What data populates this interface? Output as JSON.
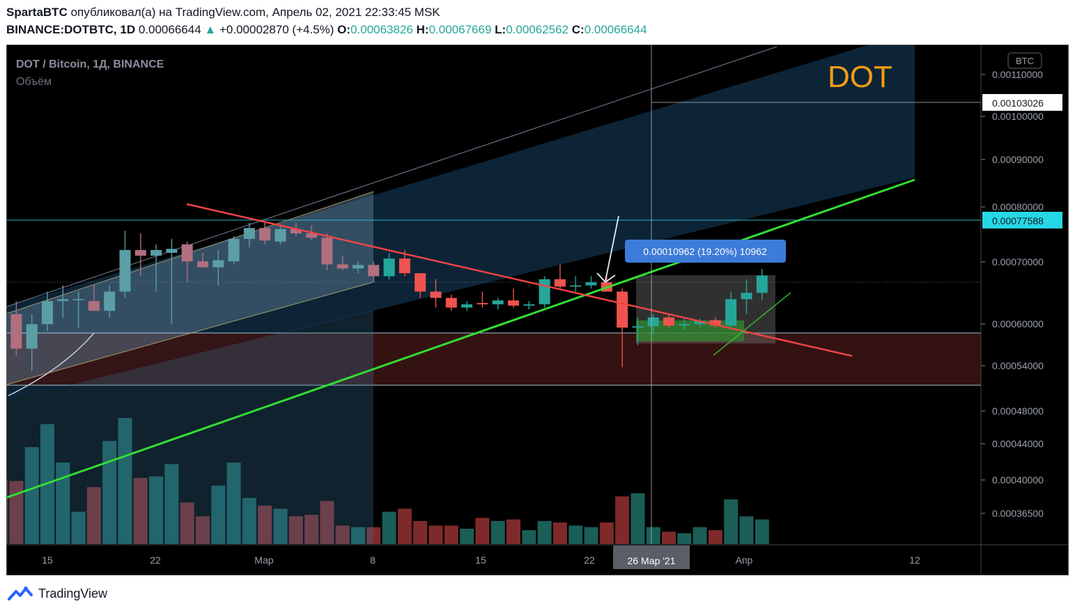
{
  "header": {
    "author": "SpartaBTC",
    "published_text": "опубликовал(а) на TradingView.com, Апрель 02, 2021 22:33:45 MSK",
    "symbol": "BINANCE:DOTBTC, 1D",
    "last_price": "0.00066644",
    "change": "+0.00002870 (+4.5%)",
    "open_label": "O:",
    "open": "0.00063826",
    "high_label": "H:",
    "high": "0.00067669",
    "low_label": "L:",
    "low": "0.00062562",
    "close_label": "C:",
    "close": "0.00066644"
  },
  "pane": {
    "title": "DOT / Bitcoin, 1Д, BINANCE",
    "volume_label": "Объём",
    "big_label": "DOT",
    "currency_badge": "BTC",
    "measure_label": "0.00010962 (19.20%) 10962",
    "crosshair_date": "26 Мар '21",
    "crosshair_price": "0.00103026",
    "last_price_label": "0.00077588"
  },
  "footer": {
    "brand": "TradingView"
  },
  "colors": {
    "up": "#26a69a",
    "down": "#ef5350",
    "up_soft": "#5b9ea6",
    "down_soft": "#b07080",
    "vol_up": "#1b5e58",
    "vol_down": "#7f2a2a",
    "green_line": "#33dd33",
    "red_line": "#ef4444",
    "measure": "#3d7bd9"
  },
  "chart_data": {
    "type": "candlestick",
    "y_scale": "log",
    "ylim": [
      0.00033,
      0.0012
    ],
    "y_ticks": [
      "0.00110000",
      "0.00100000",
      "0.00090000",
      "0.00080000",
      "0.00070000",
      "0.00060000",
      "0.00054000",
      "0.00048000",
      "0.00044000",
      "0.00040000",
      "0.00036500"
    ],
    "x_ticks": [
      "15",
      "22",
      "Мар",
      "8",
      "15",
      "22",
      "Апр",
      "12"
    ],
    "candles": [
      {
        "date": "2021-02-12",
        "o": 0.000615,
        "h": 0.00064,
        "l": 0.00058,
        "c": 0.0006,
        "v": 0.42
      },
      {
        "date": "2021-02-13",
        "o": 0.000605,
        "h": 0.000625,
        "l": 0.000545,
        "c": 0.000555,
        "v": 0.41
      },
      {
        "date": "2021-02-14",
        "o": 0.000555,
        "h": 0.000605,
        "l": 0.000525,
        "c": 0.00059,
        "v": 0.63
      },
      {
        "date": "2021-02-15",
        "o": 0.00059,
        "h": 0.00064,
        "l": 0.00058,
        "c": 0.000625,
        "v": 0.78
      },
      {
        "date": "2021-02-16",
        "o": 0.000625,
        "h": 0.00065,
        "l": 0.0006,
        "c": 0.000628,
        "v": 0.53
      },
      {
        "date": "2021-02-17",
        "o": 0.000628,
        "h": 0.00064,
        "l": 0.000585,
        "c": 0.000628,
        "v": 0.21
      },
      {
        "date": "2021-02-18",
        "o": 0.000625,
        "h": 0.00065,
        "l": 0.00061,
        "c": 0.00061,
        "v": 0.37
      },
      {
        "date": "2021-02-19",
        "o": 0.00061,
        "h": 0.00065,
        "l": 0.0006,
        "c": 0.00064,
        "v": 0.67
      },
      {
        "date": "2021-02-20",
        "o": 0.00064,
        "h": 0.000745,
        "l": 0.00063,
        "c": 0.00071,
        "v": 0.82
      },
      {
        "date": "2021-02-21",
        "o": 0.00071,
        "h": 0.00074,
        "l": 0.000665,
        "c": 0.0007,
        "v": 0.43
      },
      {
        "date": "2021-02-22",
        "o": 0.0007,
        "h": 0.00072,
        "l": 0.00064,
        "c": 0.00071,
        "v": 0.44
      },
      {
        "date": "2021-02-23",
        "o": 0.000705,
        "h": 0.00073,
        "l": 0.00059,
        "c": 0.000712,
        "v": 0.52
      },
      {
        "date": "2021-02-24",
        "o": 0.00072,
        "h": 0.000725,
        "l": 0.000655,
        "c": 0.00069,
        "v": 0.27
      },
      {
        "date": "2021-02-25",
        "o": 0.00069,
        "h": 0.000705,
        "l": 0.00068,
        "c": 0.00068,
        "v": 0.18
      },
      {
        "date": "2021-02-26",
        "o": 0.00068,
        "h": 0.00071,
        "l": 0.00065,
        "c": 0.000692,
        "v": 0.38
      },
      {
        "date": "2021-02-27",
        "o": 0.00069,
        "h": 0.000735,
        "l": 0.000685,
        "c": 0.00073,
        "v": 0.53
      },
      {
        "date": "2021-02-28",
        "o": 0.00073,
        "h": 0.00076,
        "l": 0.000715,
        "c": 0.00075,
        "v": 0.3
      },
      {
        "date": "2021-03-01",
        "o": 0.00075,
        "h": 0.00076,
        "l": 0.00072,
        "c": 0.000727,
        "v": 0.25
      },
      {
        "date": "2021-03-02",
        "o": 0.000725,
        "h": 0.000755,
        "l": 0.00072,
        "c": 0.000748,
        "v": 0.23
      },
      {
        "date": "2021-03-03",
        "o": 0.000748,
        "h": 0.00076,
        "l": 0.000735,
        "c": 0.00074,
        "v": 0.18
      },
      {
        "date": "2021-03-04",
        "o": 0.00074,
        "h": 0.000755,
        "l": 0.000728,
        "c": 0.000732,
        "v": 0.19
      },
      {
        "date": "2021-03-05",
        "o": 0.000732,
        "h": 0.00074,
        "l": 0.000675,
        "c": 0.000685,
        "v": 0.28
      },
      {
        "date": "2021-03-06",
        "o": 0.000685,
        "h": 0.0007,
        "l": 0.000675,
        "c": 0.000678,
        "v": 0.12
      },
      {
        "date": "2021-03-07",
        "o": 0.000678,
        "h": 0.00069,
        "l": 0.00067,
        "c": 0.000684,
        "v": 0.11
      },
      {
        "date": "2021-03-08",
        "o": 0.000684,
        "h": 0.00069,
        "l": 0.000655,
        "c": 0.000665,
        "v": 0.11
      },
      {
        "date": "2021-03-09",
        "o": 0.000665,
        "h": 0.000705,
        "l": 0.00066,
        "c": 0.000695,
        "v": 0.21
      },
      {
        "date": "2021-03-10",
        "o": 0.000695,
        "h": 0.00071,
        "l": 0.000665,
        "c": 0.00067,
        "v": 0.23
      },
      {
        "date": "2021-03-11",
        "o": 0.00067,
        "h": 0.00067,
        "l": 0.00063,
        "c": 0.00064,
        "v": 0.15
      },
      {
        "date": "2021-03-12",
        "o": 0.00064,
        "h": 0.00066,
        "l": 0.000615,
        "c": 0.00063,
        "v": 0.12
      },
      {
        "date": "2021-03-13",
        "o": 0.00063,
        "h": 0.000635,
        "l": 0.00061,
        "c": 0.000615,
        "v": 0.12
      },
      {
        "date": "2021-03-14",
        "o": 0.000615,
        "h": 0.000625,
        "l": 0.00061,
        "c": 0.00062,
        "v": 0.1
      },
      {
        "date": "2021-03-15",
        "o": 0.000622,
        "h": 0.00064,
        "l": 0.000615,
        "c": 0.00062,
        "v": 0.17
      },
      {
        "date": "2021-03-16",
        "o": 0.00062,
        "h": 0.00063,
        "l": 0.000612,
        "c": 0.000626,
        "v": 0.15
      },
      {
        "date": "2021-03-17",
        "o": 0.000626,
        "h": 0.000645,
        "l": 0.000615,
        "c": 0.000618,
        "v": 0.16
      },
      {
        "date": "2021-03-18",
        "o": 0.000618,
        "h": 0.000625,
        "l": 0.000612,
        "c": 0.00062,
        "v": 0.09
      },
      {
        "date": "2021-03-19",
        "o": 0.00062,
        "h": 0.000665,
        "l": 0.000615,
        "c": 0.00066,
        "v": 0.15
      },
      {
        "date": "2021-03-20",
        "o": 0.00066,
        "h": 0.000685,
        "l": 0.000645,
        "c": 0.000648,
        "v": 0.14
      },
      {
        "date": "2021-03-21",
        "o": 0.000648,
        "h": 0.000665,
        "l": 0.00064,
        "c": 0.00065,
        "v": 0.12
      },
      {
        "date": "2021-03-22",
        "o": 0.00065,
        "h": 0.000665,
        "l": 0.000645,
        "c": 0.000655,
        "v": 0.11
      },
      {
        "date": "2021-03-23",
        "o": 0.000655,
        "h": 0.000668,
        "l": 0.00064,
        "c": 0.00064,
        "v": 0.14
      },
      {
        "date": "2021-03-24",
        "o": 0.00064,
        "h": 0.000645,
        "l": 0.00053,
        "c": 0.000585,
        "v": 0.31
      },
      {
        "date": "2021-03-25",
        "o": 0.000585,
        "h": 0.0006,
        "l": 0.00056,
        "c": 0.000587,
        "v": 0.33
      },
      {
        "date": "2021-03-26",
        "o": 0.000587,
        "h": 0.000605,
        "l": 0.000575,
        "c": 0.0006,
        "v": 0.11
      },
      {
        "date": "2021-03-27",
        "o": 0.0006,
        "h": 0.000605,
        "l": 0.000585,
        "c": 0.000588,
        "v": 0.08
      },
      {
        "date": "2021-03-28",
        "o": 0.000588,
        "h": 0.000598,
        "l": 0.000582,
        "c": 0.00059,
        "v": 0.07
      },
      {
        "date": "2021-03-29",
        "o": 0.00059,
        "h": 0.000598,
        "l": 0.000585,
        "c": 0.000595,
        "v": 0.11
      },
      {
        "date": "2021-03-30",
        "o": 0.000596,
        "h": 0.0006,
        "l": 0.000585,
        "c": 0.000588,
        "v": 0.09
      },
      {
        "date": "2021-03-31",
        "o": 0.000588,
        "h": 0.00064,
        "l": 0.000585,
        "c": 0.000628,
        "v": 0.29
      },
      {
        "date": "2021-04-01",
        "o": 0.000628,
        "h": 0.00066,
        "l": 0.000605,
        "c": 0.000638,
        "v": 0.18
      },
      {
        "date": "2021-04-02",
        "o": 0.000638,
        "h": 0.000677,
        "l": 0.000626,
        "c": 0.000666,
        "v": 0.16
      }
    ]
  }
}
